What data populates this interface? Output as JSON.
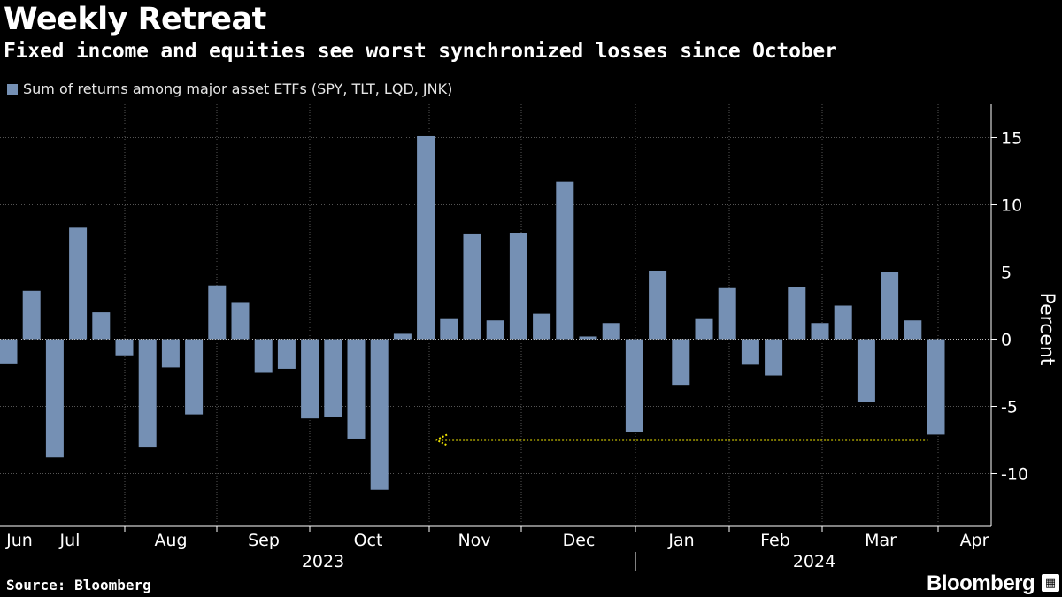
{
  "chart_data": {
    "type": "bar",
    "title": "Weekly Retreat",
    "subtitle": "Fixed income and equities see worst synchronized losses since October",
    "series": [
      {
        "name": "Sum of returns among major asset ETFs (SPY, TLT, LQD, JNK)",
        "values": [
          -1.8,
          3.6,
          -8.8,
          8.3,
          2.0,
          -1.2,
          -8.0,
          -2.1,
          -5.6,
          4.0,
          2.7,
          -2.5,
          -2.2,
          -5.9,
          -5.8,
          -7.4,
          -11.2,
          0.4,
          15.1,
          1.5,
          7.8,
          1.4,
          7.9,
          1.9,
          11.7,
          0.2,
          1.2,
          -6.9,
          5.1,
          -3.4,
          1.5,
          3.8,
          -1.9,
          -2.7,
          3.9,
          1.2,
          2.5,
          -4.7,
          5.0,
          1.4,
          -7.1
        ]
      }
    ],
    "ylabel": "Percent",
    "ylim": [
      -13.5,
      17.5
    ],
    "yticks": [
      -10,
      -5,
      0,
      5,
      10,
      15
    ],
    "grid": true,
    "legend_position": "top-left",
    "x_month_labels": [
      "Jun",
      "Jul",
      "Aug",
      "Sep",
      "Oct",
      "Nov",
      "Dec",
      "Jan",
      "Feb",
      "Mar",
      "Apr"
    ],
    "x_year_labels": [
      "2023",
      "2024"
    ],
    "annotation": {
      "type": "dotted-reference-line",
      "y": -7.5,
      "from_bar": 18,
      "to_bar": 40,
      "color": "#f2e600"
    },
    "colors": {
      "bar": "#7590b4",
      "grid": "#555555",
      "axis": "#ffffff"
    }
  },
  "footer": {
    "source": "Source: Bloomberg",
    "brand": "Bloomberg"
  }
}
